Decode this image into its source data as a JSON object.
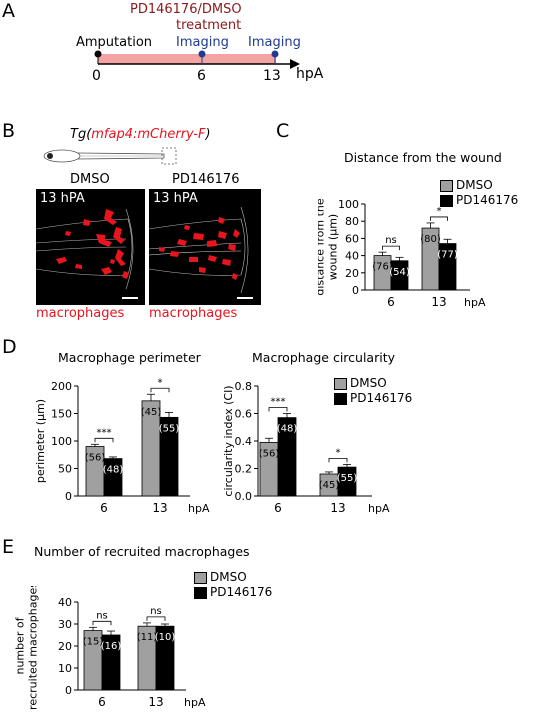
{
  "panels": {
    "A": "A",
    "B": "B",
    "C": "C",
    "D": "D",
    "E": "E"
  },
  "timeline": {
    "treatment_label_1": "PD146176/DMSO",
    "treatment_label_2": "treatment",
    "amputation_label": "Amputation",
    "imaging_label_1": "Imaging",
    "imaging_label_2": "Imaging",
    "tick_0": "0",
    "tick_6": "6",
    "tick_13": "13",
    "unit": "hpA",
    "colors": {
      "bar": "#f4a3a3",
      "treatment_text": "#8b1a1a",
      "imaging_text": "#1f3a93",
      "imaging_dot": "#1f3a93"
    }
  },
  "panel_b": {
    "transgene_prefix": "Tg(",
    "transgene_name": "mfap4:mCherry-F",
    "transgene_suffix": ")",
    "dmso_label": "DMSO",
    "pd_label": "PD146176",
    "timepoint_1": "13 hPA",
    "timepoint_2": "13 hPA",
    "cell_label_1": "macrophages",
    "cell_label_2": "macrophages",
    "colors": {
      "cells": "#e8141e"
    }
  },
  "legend": {
    "dmso": "DMSO",
    "pd": "PD146176",
    "colors": {
      "dmso": "#a0a0a0",
      "pd": "#000000"
    }
  },
  "chart_data": [
    {
      "id": "distance",
      "type": "bar",
      "title": "Distance from the wound",
      "ylabel_1": "distance from the",
      "ylabel_2": "wound (μm)",
      "categories": [
        "6",
        "13"
      ],
      "xunit": "hpA",
      "ylim": [
        0,
        100
      ],
      "yticks": [
        "0",
        "20",
        "40",
        "60",
        "80",
        "100"
      ],
      "series": [
        {
          "name": "DMSO",
          "values": [
            40,
            72
          ],
          "errors": [
            4,
            6
          ],
          "n": [
            "(76)",
            "(80)"
          ]
        },
        {
          "name": "PD146176",
          "values": [
            34,
            54
          ],
          "errors": [
            4,
            5
          ],
          "n": [
            "(54)",
            "(77)"
          ]
        }
      ],
      "significance": [
        "ns",
        "*"
      ]
    },
    {
      "id": "perimeter",
      "type": "bar",
      "title": "Macrophage perimeter",
      "ylabel_1": "perimeter (μm)",
      "ylabel_2": "",
      "categories": [
        "6",
        "13"
      ],
      "xunit": "hpA",
      "ylim": [
        0,
        200
      ],
      "yticks": [
        "0",
        "50",
        "100",
        "150",
        "200"
      ],
      "series": [
        {
          "name": "DMSO",
          "values": [
            90,
            173
          ],
          "errors": [
            4,
            12
          ],
          "n": [
            "(56)",
            "(45)"
          ]
        },
        {
          "name": "PD146176",
          "values": [
            68,
            143
          ],
          "errors": [
            3,
            9
          ],
          "n": [
            "(48)",
            "(55)"
          ]
        }
      ],
      "significance": [
        "***",
        "*"
      ]
    },
    {
      "id": "circularity",
      "type": "bar",
      "title": "Macrophage circularity",
      "ylabel_1": "circularity index (CI)",
      "ylabel_2": "",
      "categories": [
        "6",
        "13"
      ],
      "xunit": "hpA",
      "ylim": [
        0,
        0.8
      ],
      "yticks": [
        "0.0",
        "0.2",
        "0.4",
        "0.6",
        "0.8"
      ],
      "series": [
        {
          "name": "DMSO",
          "values": [
            0.39,
            0.16
          ],
          "errors": [
            0.03,
            0.015
          ],
          "n": [
            "(56)",
            "(45)"
          ]
        },
        {
          "name": "PD146176",
          "values": [
            0.57,
            0.21
          ],
          "errors": [
            0.03,
            0.02
          ],
          "n": [
            "(48)",
            "(55)"
          ]
        }
      ],
      "significance": [
        "***",
        "*"
      ]
    },
    {
      "id": "recruited",
      "type": "bar",
      "title": "Number of recruited macrophages",
      "ylabel_1": "number of",
      "ylabel_2": "recruited macrophages",
      "categories": [
        "6",
        "13"
      ],
      "xunit": "hpA",
      "ylim": [
        0,
        40
      ],
      "yticks": [
        "0",
        "10",
        "20",
        "30",
        "40"
      ],
      "series": [
        {
          "name": "DMSO",
          "values": [
            27,
            29
          ],
          "errors": [
            1.5,
            1.5
          ],
          "n": [
            "(15)",
            "(11)"
          ]
        },
        {
          "name": "PD146176",
          "values": [
            25,
            29
          ],
          "errors": [
            1.8,
            1.0
          ],
          "n": [
            "(16)",
            "(10)"
          ]
        }
      ],
      "significance": [
        "ns",
        "ns"
      ]
    }
  ]
}
